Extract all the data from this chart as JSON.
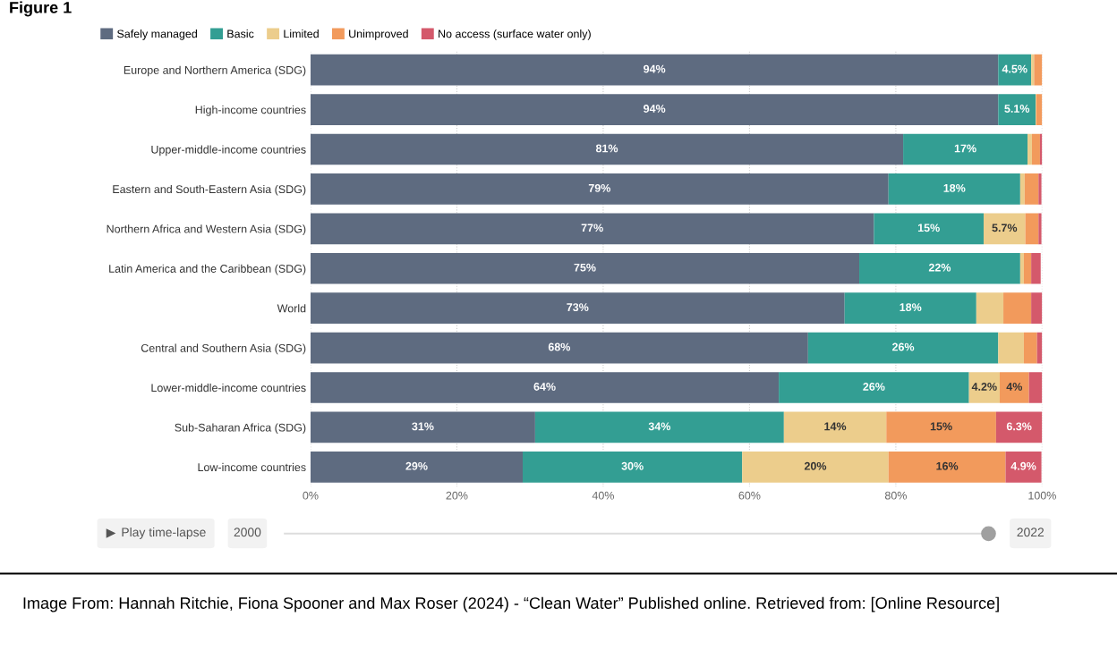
{
  "chart_data": {
    "type": "bar",
    "orientation": "horizontal",
    "stacked": true,
    "title": "Figure 1",
    "categories": [
      "Europe and Northern America (SDG)",
      "High-income countries",
      "Upper-middle-income countries",
      "Eastern and South-Eastern Asia (SDG)",
      "Northern Africa and Western Asia (SDG)",
      "Latin America and the Caribbean (SDG)",
      "World",
      "Central and Southern Asia (SDG)",
      "Lower-middle-income countries",
      "Sub-Saharan Africa (SDG)",
      "Low-income countries"
    ],
    "series": [
      {
        "name": "Safely managed",
        "color": "#5e6b80",
        "values": [
          94,
          94,
          81,
          79,
          77,
          75,
          73,
          68,
          64,
          30.7,
          29
        ],
        "value_labels": [
          "94%",
          "94%",
          "81%",
          "79%",
          "77%",
          "75%",
          "73%",
          "68%",
          "64%",
          "31%",
          "29%"
        ]
      },
      {
        "name": "Basic",
        "color": "#339e93",
        "values": [
          4.5,
          5.1,
          17,
          18,
          15,
          22,
          18,
          26,
          26,
          34,
          30
        ],
        "value_labels": [
          "4.5%",
          "5.1%",
          "17%",
          "18%",
          "15%",
          "22%",
          "18%",
          "26%",
          "26%",
          "34%",
          "30%"
        ]
      },
      {
        "name": "Limited",
        "color": "#eccd8c",
        "values": [
          0.4,
          0.1,
          0.6,
          0.6,
          5.7,
          0.5,
          3.7,
          3.5,
          4.2,
          14,
          20
        ],
        "value_labels": [
          null,
          null,
          null,
          null,
          "5.7%",
          null,
          null,
          null,
          "4.2%",
          "14%",
          "20%"
        ]
      },
      {
        "name": "Unimproved",
        "color": "#f29a5c",
        "values": [
          1.1,
          0.8,
          1.1,
          1.9,
          1.8,
          1.0,
          3.8,
          1.8,
          4,
          15,
          16
        ],
        "value_labels": [
          null,
          null,
          null,
          null,
          null,
          null,
          null,
          null,
          "4%",
          "15%",
          "16%"
        ]
      },
      {
        "name": "No access (surface water only)",
        "color": "#d4596b",
        "values": [
          0,
          0,
          0.3,
          0.4,
          0.4,
          1.3,
          1.5,
          0.7,
          1.8,
          6.3,
          4.9
        ],
        "value_labels": [
          null,
          null,
          null,
          null,
          null,
          null,
          null,
          null,
          null,
          "6.3%",
          "4.9%"
        ]
      }
    ],
    "xlim": [
      0,
      100
    ],
    "xticks": [
      {
        "value": 0,
        "label": "0%"
      },
      {
        "value": 20,
        "label": "20%"
      },
      {
        "value": 40,
        "label": "40%"
      },
      {
        "value": 60,
        "label": "60%"
      },
      {
        "value": 80,
        "label": "80%"
      },
      {
        "value": 100,
        "label": "100%"
      }
    ],
    "grid": "x",
    "legend": "top left",
    "annotations": [
      "Play time-lapse",
      "2000",
      "2022",
      "Image From: Hannah Ritchie, Fiona Spooner and Max Roser (2024) - “Clean Water” Published online. Retrieved from: [Online Resource]"
    ]
  }
}
